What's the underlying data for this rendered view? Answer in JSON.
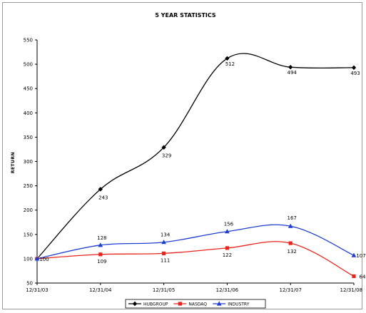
{
  "chart_data": {
    "type": "line",
    "title": "5 YEAR STATISTICS",
    "xlabel": "",
    "ylabel": "RETURN",
    "categories": [
      "12/31/03",
      "12/31/04",
      "12/31/05",
      "12/31/06",
      "12/31/07",
      "12/31/08"
    ],
    "ylim": [
      50,
      550
    ],
    "yticks": [
      50,
      100,
      150,
      200,
      250,
      300,
      350,
      400,
      450,
      500,
      550
    ],
    "grid": false,
    "legend_position": "bottom",
    "series": [
      {
        "name": "HUBGROUP",
        "color": "#000000",
        "marker": "diamond",
        "values": [
          100,
          243,
          329,
          512,
          494,
          493
        ],
        "labels": [
          "100",
          "243",
          "329",
          "512",
          "494",
          "493"
        ]
      },
      {
        "name": "NASDAQ",
        "color": "#e8251c",
        "marker": "square",
        "values": [
          100,
          109,
          111,
          122,
          132,
          64
        ],
        "labels": [
          "",
          "109",
          "111",
          "122",
          "132",
          "64"
        ]
      },
      {
        "name": "INDUSTRY",
        "color": "#1f3fd1",
        "marker": "triangle",
        "values": [
          100,
          128,
          134,
          156,
          167,
          107
        ],
        "labels": [
          "",
          "128",
          "134",
          "156",
          "167",
          "107"
        ]
      }
    ]
  }
}
